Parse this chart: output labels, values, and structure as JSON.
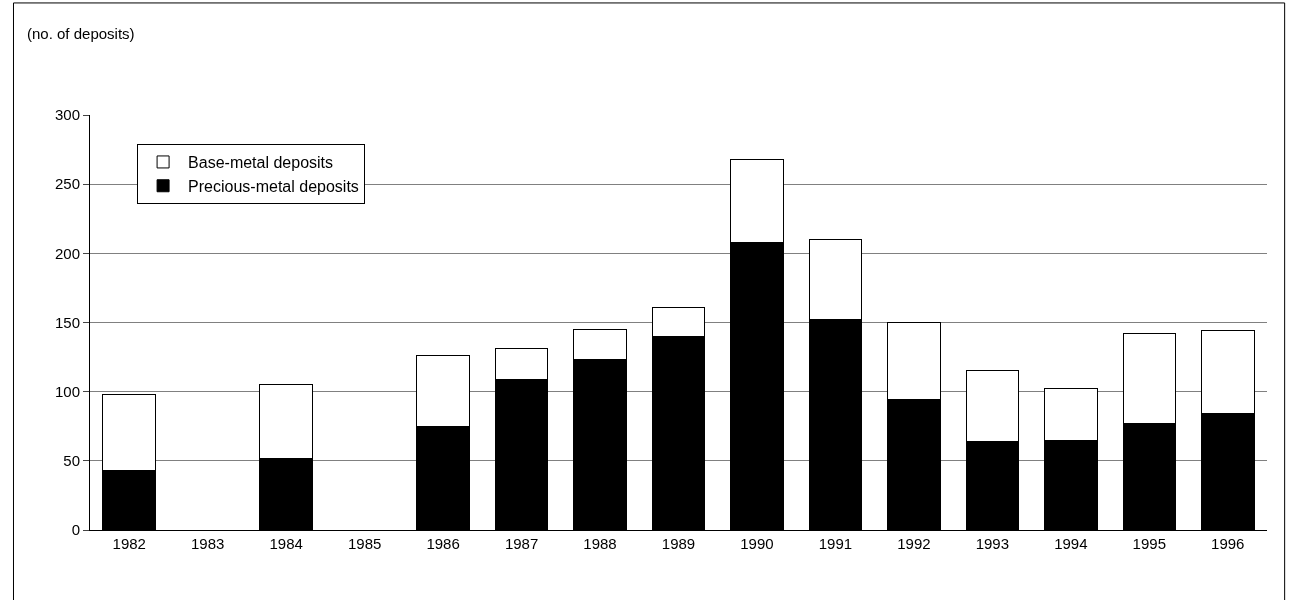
{
  "chart_data": {
    "type": "bar",
    "stacked": true,
    "ylabel": "(no. of deposits)",
    "categories": [
      "1982",
      "1983",
      "1984",
      "1985",
      "1986",
      "1987",
      "1988",
      "1989",
      "1990",
      "1991",
      "1992",
      "1993",
      "1994",
      "1995",
      "1996"
    ],
    "series": [
      {
        "name": "Precious-metal deposits",
        "color": "#000000",
        "values": [
          43,
          null,
          52,
          null,
          75,
          109,
          123,
          140,
          208,
          152,
          94,
          64,
          65,
          77,
          84
        ]
      },
      {
        "name": "Base-metal deposits",
        "color": "#ffffff",
        "values": [
          55,
          null,
          53,
          null,
          51,
          22,
          22,
          21,
          60,
          58,
          56,
          51,
          37,
          65,
          60
        ]
      }
    ],
    "ylim": [
      0,
      300
    ],
    "yticks": [
      0,
      50,
      100,
      150,
      200,
      250,
      300
    ],
    "grid": "y",
    "legend": "top left"
  }
}
